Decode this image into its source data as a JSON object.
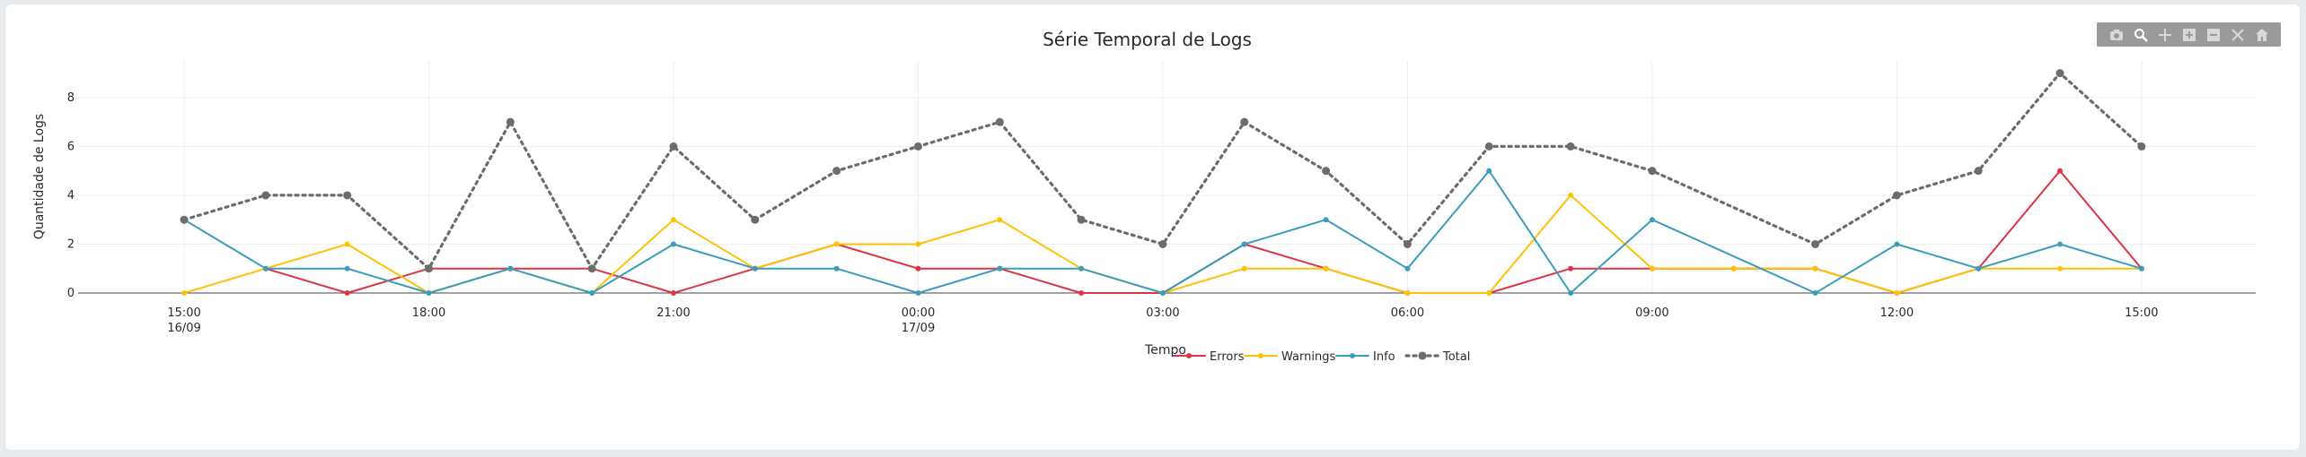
{
  "chart_data": {
    "type": "line",
    "title": "Série Temporal de Logs",
    "xlabel": "Tempo",
    "ylabel": "Quantidade de Logs",
    "ylim": [
      0,
      9.5
    ],
    "y_ticks": [
      0,
      2,
      4,
      6,
      8
    ],
    "x_ticks": [
      {
        "x": 0,
        "label": "15:00",
        "sublabel": "16/09"
      },
      {
        "x": 3,
        "label": "18:00",
        "sublabel": ""
      },
      {
        "x": 6,
        "label": "21:00",
        "sublabel": ""
      },
      {
        "x": 9,
        "label": "00:00",
        "sublabel": "17/09"
      },
      {
        "x": 12,
        "label": "03:00",
        "sublabel": ""
      },
      {
        "x": 15,
        "label": "06:00",
        "sublabel": ""
      },
      {
        "x": 18,
        "label": "09:00",
        "sublabel": ""
      },
      {
        "x": 21,
        "label": "12:00",
        "sublabel": ""
      },
      {
        "x": 24,
        "label": "15:00",
        "sublabel": ""
      }
    ],
    "xlim": [
      -1.3,
      25.4
    ],
    "grid": true,
    "legend_position": "bottom-center",
    "series": [
      {
        "name": "Errors",
        "color": "#dc3545",
        "dash": "solid",
        "x": [
          1,
          2,
          3,
          4,
          5,
          6,
          7,
          8,
          9,
          10,
          11,
          12,
          13,
          14,
          15,
          16,
          17,
          18,
          19,
          20,
          21,
          22,
          23,
          24
        ],
        "y": [
          1,
          0,
          1,
          1,
          1,
          0,
          1,
          2,
          1,
          1,
          0,
          0,
          2,
          1,
          0,
          0,
          1,
          1,
          1,
          1,
          0,
          1,
          5,
          1
        ]
      },
      {
        "name": "Warnings",
        "color": "#ffc107",
        "dash": "solid",
        "x": [
          0,
          1,
          2,
          3,
          4,
          5,
          6,
          7,
          8,
          9,
          10,
          11,
          12,
          13,
          14,
          15,
          16,
          17,
          18,
          19,
          20,
          21,
          22,
          23,
          24
        ],
        "y": [
          0,
          1,
          2,
          0,
          1,
          0,
          3,
          1,
          2,
          2,
          3,
          1,
          0,
          1,
          1,
          0,
          0,
          4,
          1,
          1,
          1,
          0,
          1,
          1,
          1
        ]
      },
      {
        "name": "Info",
        "color": "#3a9dbd",
        "dash": "solid",
        "x": [
          0,
          1,
          2,
          3,
          4,
          5,
          6,
          7,
          8,
          9,
          10,
          11,
          12,
          13,
          14,
          15,
          16,
          17,
          18,
          20,
          21,
          22,
          23,
          24
        ],
        "y": [
          3,
          1,
          1,
          0,
          1,
          0,
          2,
          1,
          1,
          0,
          1,
          1,
          0,
          2,
          3,
          1,
          5,
          0,
          3,
          0,
          2,
          1,
          2,
          1
        ]
      },
      {
        "name": "Total",
        "color": "#6c6c6c",
        "dash": "dot",
        "x": [
          0,
          1,
          2,
          3,
          4,
          5,
          6,
          7,
          8,
          9,
          10,
          11,
          12,
          13,
          14,
          15,
          16,
          17,
          18,
          20,
          21,
          22,
          23,
          24
        ],
        "y": [
          3,
          4,
          4,
          1,
          7,
          1,
          6,
          3,
          5,
          6,
          7,
          3,
          2,
          7,
          5,
          2,
          6,
          6,
          5,
          2,
          4,
          5,
          9,
          6
        ]
      }
    ]
  },
  "modebar": {
    "icons": [
      "camera-icon",
      "zoom-icon",
      "pan-icon",
      "zoom-in-icon",
      "zoom-out-icon",
      "autoscale-icon",
      "reset-axes-icon"
    ]
  }
}
